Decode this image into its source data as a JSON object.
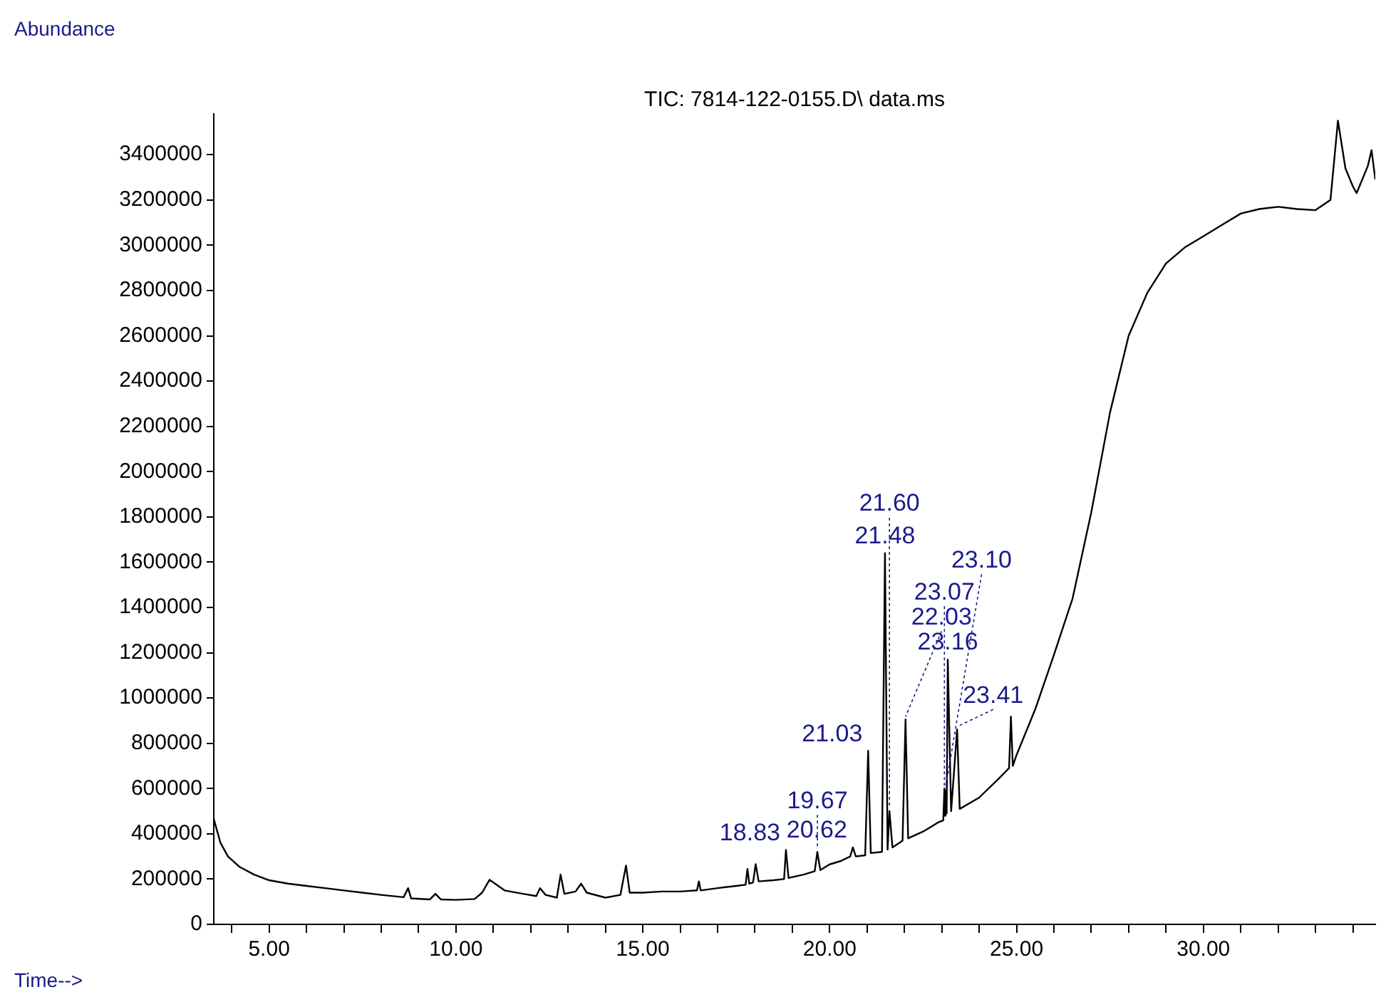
{
  "chart_data": {
    "type": "line",
    "title": "TIC: 7814-122-0155.D\\ data.ms",
    "xlabel": "Time-->",
    "ylabel": "Abundance",
    "grid": false,
    "xlim": [
      3.52,
      34.6
    ],
    "ylim": [
      0,
      3580000
    ],
    "xticks": [
      {
        "value": 4,
        "label": null
      },
      {
        "value": 5,
        "label": "5.00"
      },
      {
        "value": 6,
        "label": null
      },
      {
        "value": 7,
        "label": null
      },
      {
        "value": 8,
        "label": null
      },
      {
        "value": 9,
        "label": null
      },
      {
        "value": 10,
        "label": "10.00"
      },
      {
        "value": 11,
        "label": null
      },
      {
        "value": 12,
        "label": null
      },
      {
        "value": 13,
        "label": null
      },
      {
        "value": 14,
        "label": null
      },
      {
        "value": 15,
        "label": "15.00"
      },
      {
        "value": 16,
        "label": null
      },
      {
        "value": 17,
        "label": null
      },
      {
        "value": 18,
        "label": null
      },
      {
        "value": 19,
        "label": null
      },
      {
        "value": 20,
        "label": "20.00"
      },
      {
        "value": 21,
        "label": null
      },
      {
        "value": 22,
        "label": null
      },
      {
        "value": 23,
        "label": null
      },
      {
        "value": 24,
        "label": null
      },
      {
        "value": 25,
        "label": "25.00"
      },
      {
        "value": 26,
        "label": null
      },
      {
        "value": 27,
        "label": null
      },
      {
        "value": 28,
        "label": null
      },
      {
        "value": 29,
        "label": null
      },
      {
        "value": 30,
        "label": "30.00"
      },
      {
        "value": 31,
        "label": null
      },
      {
        "value": 32,
        "label": null
      },
      {
        "value": 33,
        "label": null
      },
      {
        "value": 34,
        "label": null
      }
    ],
    "yticks": [
      0,
      200000,
      400000,
      600000,
      800000,
      1000000,
      1200000,
      1400000,
      1600000,
      1800000,
      2000000,
      2200000,
      2400000,
      2600000,
      2800000,
      3000000,
      3200000,
      3400000
    ],
    "x": [
      3.52,
      3.7,
      3.9,
      4.2,
      4.6,
      5.0,
      5.5,
      6.0,
      6.5,
      7.0,
      7.5,
      8.0,
      8.6,
      8.72,
      8.8,
      9.3,
      9.45,
      9.6,
      10.0,
      10.5,
      10.7,
      10.9,
      11.3,
      11.8,
      12.15,
      12.25,
      12.4,
      12.7,
      12.8,
      12.9,
      13.2,
      13.35,
      13.5,
      14.0,
      14.4,
      14.55,
      14.65,
      15.0,
      15.5,
      16.0,
      16.45,
      16.5,
      16.55,
      17.0,
      17.5,
      17.75,
      17.8,
      17.85,
      17.95,
      18.02,
      18.1,
      18.5,
      18.78,
      18.83,
      18.9,
      19.3,
      19.6,
      19.67,
      19.75,
      20.0,
      20.3,
      20.55,
      20.62,
      20.7,
      20.95,
      21.03,
      21.1,
      21.4,
      21.48,
      21.55,
      21.6,
      21.68,
      21.95,
      22.03,
      22.1,
      22.5,
      22.9,
      23.04,
      23.07,
      23.085,
      23.1,
      23.13,
      23.16,
      23.25,
      23.41,
      23.48,
      24.0,
      24.5,
      24.8,
      24.85,
      24.9,
      25.0,
      25.5,
      26.0,
      26.5,
      27.0,
      27.5,
      28.0,
      28.5,
      29.0,
      29.5,
      30.0,
      30.5,
      31.0,
      31.5,
      32.0,
      32.5,
      33.0,
      33.4,
      33.6,
      33.8,
      34.0,
      34.1,
      34.4,
      34.5,
      34.6
    ],
    "series": [
      {
        "color": "#000000",
        "values": [
          465000,
          360000,
          300000,
          255000,
          220000,
          195000,
          180000,
          170000,
          160000,
          150000,
          140000,
          130000,
          120000,
          160000,
          115000,
          110000,
          135000,
          110000,
          108000,
          112000,
          140000,
          197000,
          150000,
          135000,
          125000,
          160000,
          130000,
          118000,
          220000,
          135000,
          145000,
          180000,
          140000,
          118000,
          130000,
          260000,
          140000,
          140000,
          145000,
          145000,
          150000,
          190000,
          150000,
          160000,
          170000,
          175000,
          245000,
          180000,
          185000,
          266000,
          190000,
          195000,
          200000,
          329000,
          205000,
          220000,
          235000,
          320000,
          240000,
          265000,
          280000,
          300000,
          340000,
          300000,
          305000,
          767000,
          315000,
          320000,
          1640000,
          330000,
          500000,
          340000,
          370000,
          905000,
          380000,
          410000,
          450000,
          460000,
          600000,
          480000,
          590000,
          490000,
          1170000,
          500000,
          861000,
          510000,
          560000,
          640000,
          690000,
          918000,
          700000,
          748000,
          950000,
          1190000,
          1440000,
          1820000,
          2260000,
          2600000,
          2790000,
          2920000,
          2990000,
          3040000,
          3090000,
          3140000,
          3160000,
          3170000,
          3160000,
          3155000,
          3200000,
          3550000,
          3340000,
          3260000,
          3230000,
          3350000,
          3420000,
          3290000
        ]
      }
    ],
    "annotations": [
      {
        "text": "18.83",
        "x": 18.83,
        "y": 329000
      },
      {
        "text": "19.67",
        "x": 19.67,
        "y": 320000
      },
      {
        "text": "20.62",
        "x": 20.62,
        "y": 340000
      },
      {
        "text": "21.03",
        "x": 21.03,
        "y": 767000
      },
      {
        "text": "21.48",
        "x": 21.48,
        "y": 1640000
      },
      {
        "text": "21.60",
        "x": 21.6,
        "y": 500000
      },
      {
        "text": "22.03",
        "x": 22.03,
        "y": 905000
      },
      {
        "text": "23.07",
        "x": 23.07,
        "y": 600000
      },
      {
        "text": "23.10",
        "x": 23.1,
        "y": 590000
      },
      {
        "text": "23.16",
        "x": 23.16,
        "y": 1170000
      },
      {
        "text": "23.41",
        "x": 23.41,
        "y": 861000
      }
    ]
  }
}
